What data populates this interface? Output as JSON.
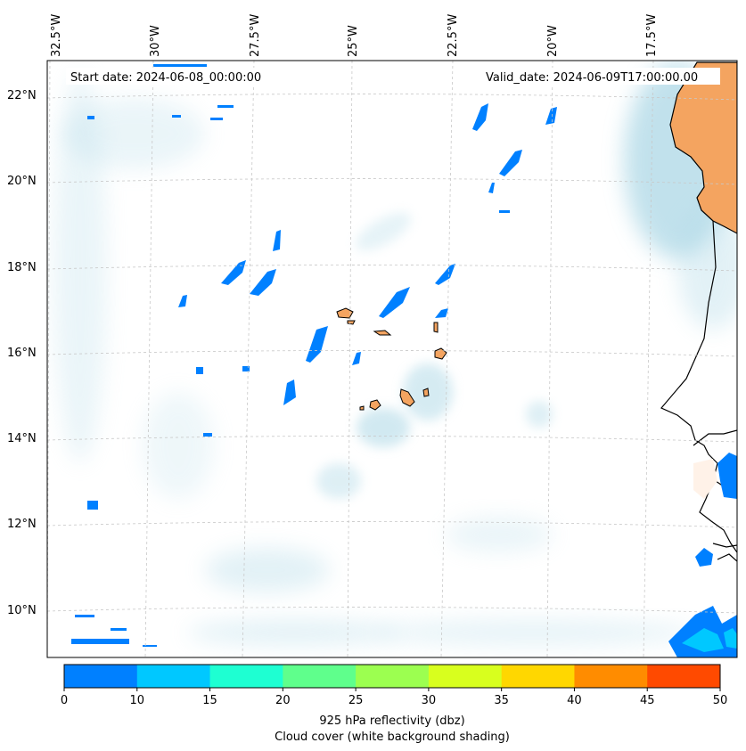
{
  "map": {
    "start_date": "Start date: 2024-06-08_00:00:00",
    "valid_date": "Valid_date: 2024-06-09T17:00:00.00",
    "longitude_labels": [
      "32.5°W",
      "30°W",
      "27.5°W",
      "25°W",
      "22.5°W",
      "20°W",
      "17.5°W"
    ],
    "latitude_labels": [
      "22°N",
      "20°N",
      "18°N",
      "16°N",
      "14°N",
      "12°N",
      "10°N"
    ],
    "land_color": "#f4a460",
    "cloud_color": "#add8e6",
    "gridlines": true
  },
  "colorbar": {
    "ticks": [
      "0",
      "10",
      "15",
      "20",
      "25",
      "30",
      "35",
      "40",
      "45",
      "50"
    ],
    "colors": [
      "#0080ff",
      "#00c8ff",
      "#1effd2",
      "#5fff8c",
      "#9cff50",
      "#d8ff1e",
      "#ffd700",
      "#ff8c00",
      "#ff4a00"
    ],
    "label_line1": "925 hPa reflectivity (dbz)",
    "label_line2": "Cloud cover (white background shading)"
  }
}
